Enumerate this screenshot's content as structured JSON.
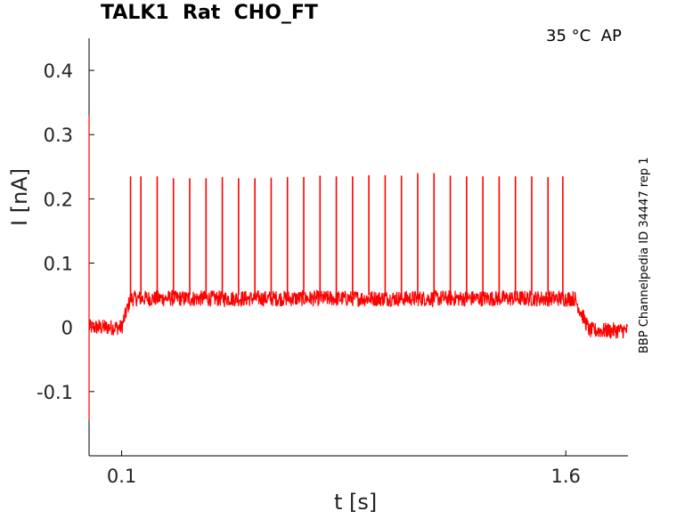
{
  "chart_data": {
    "type": "line",
    "title": "TALK1  Rat  CHO_FT",
    "annotation": "35 °C  AP",
    "side_label": "BBP Channelpedia ID 34447 rep 1",
    "xlabel": "t [s]",
    "ylabel": "I [nA]",
    "xlim": [
      -0.01,
      1.81
    ],
    "ylim": [
      -0.2,
      0.45
    ],
    "x_ticks": [
      0.1,
      1.6
    ],
    "x_tick_labels": [
      "0.1",
      "1.6"
    ],
    "y_ticks": [
      0.4,
      0.3,
      0.2,
      0.1,
      0,
      -0.1
    ],
    "y_tick_labels": [
      "0.4",
      "0.3",
      "0.2",
      "0.1",
      "0",
      "-0.1"
    ],
    "grid": false,
    "series": [
      {
        "color": "#ff0000",
        "baseline_before": 0.0,
        "stimulus_start": 0.1,
        "stimulus_end": 1.63,
        "plateau_level": 0.045,
        "spike_times": [
          0.13,
          0.165,
          0.22,
          0.275,
          0.33,
          0.385,
          0.44,
          0.495,
          0.55,
          0.605,
          0.66,
          0.715,
          0.77,
          0.825,
          0.88,
          0.935,
          0.99,
          1.045,
          1.1,
          1.155,
          1.21,
          1.265,
          1.32,
          1.375,
          1.43,
          1.485,
          1.54,
          1.59
        ],
        "spike_peaks": [
          0.235,
          0.235,
          0.235,
          0.232,
          0.232,
          0.232,
          0.234,
          0.232,
          0.232,
          0.233,
          0.234,
          0.234,
          0.236,
          0.235,
          0.235,
          0.237,
          0.237,
          0.236,
          0.24,
          0.24,
          0.236,
          0.235,
          0.235,
          0.235,
          0.235,
          0.235,
          0.234,
          0.235
        ],
        "initial_transient_max": 0.33,
        "initial_transient_min": -0.145
      }
    ]
  }
}
